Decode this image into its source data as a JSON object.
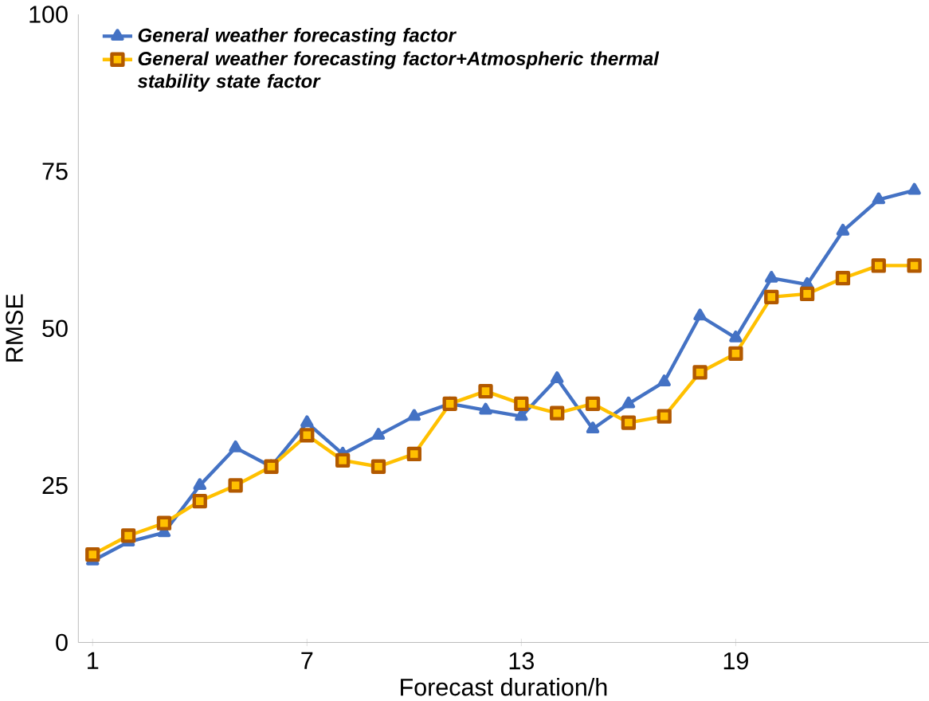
{
  "chart_data": {
    "type": "line",
    "xlabel": "Forecast duration/h",
    "ylabel": "RMSE",
    "x": [
      1,
      2,
      3,
      4,
      5,
      6,
      7,
      8,
      9,
      10,
      11,
      12,
      13,
      14,
      15,
      16,
      17,
      18,
      19,
      20,
      21,
      22,
      23,
      24
    ],
    "xlim": [
      0.6,
      24.4
    ],
    "xticks": [
      1,
      7,
      13,
      19
    ],
    "ylim": [
      0,
      100
    ],
    "yticks": [
      0,
      25,
      50,
      75,
      100
    ],
    "legend": "top left",
    "series": [
      {
        "name": "*General weather forecasting factor*",
        "color": "#4472c4",
        "marker": "triangle",
        "values": [
          13,
          16,
          17.5,
          25,
          31,
          28,
          35,
          30,
          33,
          36,
          38,
          37,
          36,
          42,
          34,
          38,
          41.5,
          52,
          48.5,
          58,
          57,
          65.5,
          70.5,
          72
        ]
      },
      {
        "name": "*General weather forecasting factor+Atmospheric thermal stability state factor*",
        "color": "#ffc000",
        "marker": "square",
        "values": [
          14,
          17,
          19,
          22.5,
          25,
          28,
          33,
          29,
          28,
          30,
          38,
          40,
          38,
          36.5,
          38,
          35,
          36,
          43,
          46,
          55,
          55.5,
          58,
          60,
          60
        ]
      }
    ]
  }
}
